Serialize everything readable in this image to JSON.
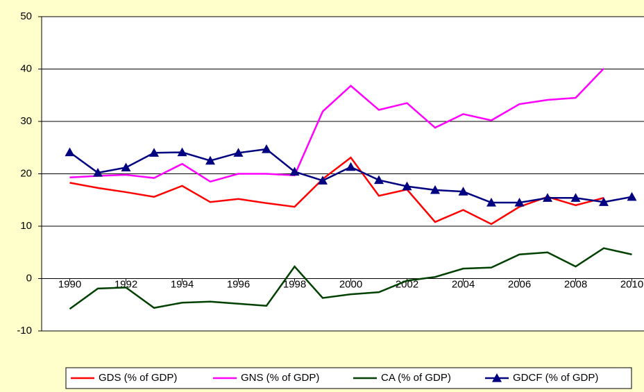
{
  "chart_data": {
    "type": "line",
    "x": [
      1990,
      1991,
      1992,
      1993,
      1994,
      1995,
      1996,
      1997,
      1998,
      1999,
      2000,
      2001,
      2002,
      2003,
      2004,
      2005,
      2006,
      2007,
      2008,
      2009,
      2010
    ],
    "series": [
      {
        "name": "GDS (% of GDP)",
        "color": "#ff0000",
        "values": [
          18.3,
          17.3,
          16.5,
          15.6,
          17.7,
          14.6,
          15.2,
          14.4,
          13.7,
          19.0,
          23.1,
          15.8,
          17.0,
          10.8,
          13.1,
          10.4,
          13.7,
          15.6,
          14.0,
          15.4,
          null
        ]
      },
      {
        "name": "GNS (% of GDP)",
        "color": "#ff00ff",
        "values": [
          19.3,
          19.6,
          19.8,
          19.2,
          21.9,
          18.5,
          20.0,
          20.0,
          19.7,
          31.9,
          36.8,
          32.2,
          33.5,
          28.8,
          31.4,
          30.2,
          33.3,
          34.1,
          34.5,
          40.1,
          null
        ]
      },
      {
        "name": "CA (% of GDP)",
        "color": "#004000",
        "values": [
          -5.8,
          -1.9,
          -1.7,
          -5.6,
          -4.6,
          -4.4,
          -4.8,
          -5.2,
          2.3,
          -3.7,
          -3.0,
          -2.6,
          -0.4,
          0.3,
          1.9,
          2.1,
          4.6,
          5.0,
          2.3,
          5.8,
          4.6
        ]
      },
      {
        "name": "GDCF (% of GDP)",
        "color": "#000080",
        "marker": "triangle",
        "values": [
          24.1,
          20.2,
          21.2,
          24.0,
          24.1,
          22.5,
          24.0,
          24.7,
          20.4,
          18.7,
          21.3,
          18.8,
          17.6,
          16.9,
          16.6,
          14.5,
          14.5,
          15.4,
          15.4,
          14.6,
          15.6
        ]
      }
    ],
    "xlim": [
      1989,
      2011
    ],
    "xticks": [
      1990,
      1992,
      1994,
      1996,
      1998,
      2000,
      2002,
      2004,
      2006,
      2008,
      2010
    ],
    "ylim": [
      -10,
      50
    ],
    "yticks": [
      -10,
      0,
      10,
      20,
      30,
      40,
      50
    ],
    "grid": true,
    "legend": "bottom"
  }
}
